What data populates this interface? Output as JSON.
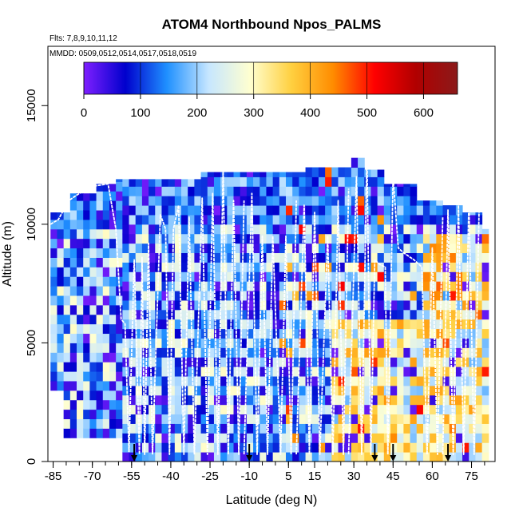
{
  "chart_data": {
    "type": "heatmap",
    "title": "ATOM4 Northbound Npos_PALMS",
    "subtitle_flights": "Flts: 7,8,9,10,11,12",
    "subtitle_dates": "MMDD: 0509,0512,0514,0517,0518,0519",
    "xlabel": "Latitude (deg N)",
    "ylabel": "Altitude (m)",
    "xlim": [
      -87,
      84
    ],
    "ylim": [
      0,
      17500
    ],
    "x_ticks": [
      -85,
      -70,
      -55,
      -40,
      -25,
      -10,
      5,
      15,
      30,
      45,
      60,
      75
    ],
    "y_ticks": [
      0,
      5000,
      10000,
      15000
    ],
    "x_minor_step": 5,
    "colorbar": {
      "ticks": [
        0,
        100,
        200,
        300,
        400,
        500,
        600
      ],
      "range": [
        0,
        660
      ],
      "colors": [
        "#7f1fff",
        "#0000cd",
        "#1f90ff",
        "#c6e6ff",
        "#ffffd0",
        "#ffd040",
        "#ff8c00",
        "#ff0000",
        "#b00000",
        "#8b1a1a"
      ],
      "placement": "top-inside"
    },
    "colors": {
      "profile_line": "#ffffff",
      "marker": "#000000"
    },
    "marker_latitudes": [
      -54,
      -10,
      38,
      45,
      66
    ],
    "profiles": [
      {
        "lat": [
          -86,
          -83,
          -79,
          -75,
          -70,
          -64,
          -61,
          -59,
          -57.5,
          -56
        ],
        "alt": [
          10000,
          10200,
          11000,
          11300,
          11600,
          11700,
          9800,
          6000,
          5800,
          400
        ]
      },
      {
        "lat": [
          -56,
          -54,
          -52,
          -51,
          -50,
          -48.5,
          -47
        ],
        "alt": [
          400,
          8500,
          300,
          8600,
          300,
          9200,
          300
        ]
      },
      {
        "lat": [
          -47,
          -44,
          -42,
          -40.5,
          -39,
          -37,
          -35,
          -33,
          -31
        ],
        "alt": [
          300,
          10400,
          9800,
          300,
          9800,
          10800,
          300,
          10300,
          300
        ]
      },
      {
        "lat": [
          -31,
          -28,
          -26,
          -24,
          -22,
          -20,
          -18,
          -16,
          -14,
          -12
        ],
        "alt": [
          300,
          11100,
          300,
          11300,
          300,
          12300,
          300,
          11000,
          300,
          11000
        ]
      },
      {
        "lat": [
          -12,
          -9,
          -7,
          -5,
          -3,
          -1,
          2,
          4,
          6,
          8
        ],
        "alt": [
          300,
          11300,
          300,
          9500,
          300,
          9500,
          300,
          9500,
          300,
          11000
        ]
      },
      {
        "lat": [
          8,
          11,
          13,
          15,
          17,
          20,
          22,
          24,
          26,
          28
        ],
        "alt": [
          300,
          10800,
          300,
          10500,
          300,
          9500,
          300,
          11000,
          300,
          11500
        ]
      },
      {
        "lat": [
          28,
          31,
          33,
          35,
          36.5,
          38,
          40,
          42,
          43
        ],
        "alt": [
          300,
          12000,
          300,
          13000,
          300,
          8500,
          8300,
          8200,
          300
        ]
      },
      {
        "lat": [
          43,
          45,
          47,
          49,
          53,
          56,
          58,
          60,
          62,
          64
        ],
        "alt": [
          300,
          12000,
          9000,
          8800,
          8500,
          8200,
          300,
          9000,
          300,
          10300
        ]
      },
      {
        "lat": [
          64,
          66,
          68,
          70,
          72,
          74,
          76,
          78
        ],
        "alt": [
          300,
          10600,
          300,
          10800,
          300,
          11000,
          300,
          11200
        ]
      }
    ]
  }
}
